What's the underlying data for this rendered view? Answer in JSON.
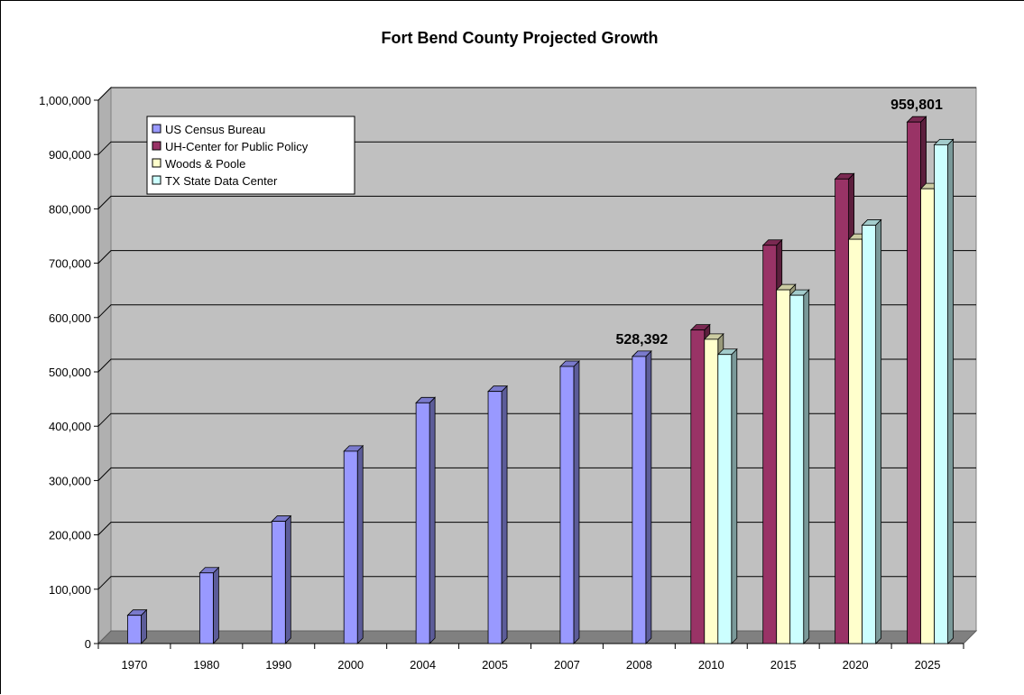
{
  "chart_data": {
    "type": "bar",
    "title": "Fort Bend County Projected Growth",
    "xlabel": "",
    "ylabel": "",
    "ylim": [
      0,
      1000000
    ],
    "yticks": [
      0,
      100000,
      200000,
      300000,
      400000,
      500000,
      600000,
      700000,
      800000,
      900000,
      1000000
    ],
    "ytick_labels": [
      "0",
      "100,000",
      "200,000",
      "300,000",
      "400,000",
      "500,000",
      "600,000",
      "700,000",
      "800,000",
      "900,000",
      "1,000,000"
    ],
    "categories": [
      "1970",
      "1980",
      "1990",
      "2000",
      "2004",
      "2005",
      "2007",
      "2008",
      "2010",
      "2015",
      "2020",
      "2025"
    ],
    "grid": true,
    "legend_position": "top-left",
    "series": [
      {
        "name": "US Census Bureau",
        "color": "#9999ff",
        "values": [
          52000,
          130000,
          225000,
          354000,
          443000,
          464000,
          510000,
          528392,
          null,
          null,
          null,
          null
        ]
      },
      {
        "name": "UH-Center for Public Policy",
        "color": "#993366",
        "values": [
          null,
          null,
          null,
          null,
          null,
          null,
          null,
          null,
          577000,
          733000,
          855000,
          959801
        ]
      },
      {
        "name": "Woods & Poole",
        "color": "#ffffcc",
        "values": [
          null,
          null,
          null,
          null,
          null,
          null,
          null,
          null,
          560000,
          651000,
          744000,
          837000
        ]
      },
      {
        "name": "TX State Data Center",
        "color": "#ccffff",
        "values": [
          null,
          null,
          null,
          null,
          null,
          null,
          null,
          null,
          532000,
          641000,
          770000,
          918000
        ]
      }
    ],
    "data_labels": [
      {
        "category": "2008",
        "series": "US Census Bureau",
        "text": "528,392"
      },
      {
        "category": "2025",
        "series": "UH-Center for Public Policy",
        "text": "959,801"
      }
    ],
    "plot_area_color": "#c0c0c0",
    "floor_color": "#808080"
  }
}
